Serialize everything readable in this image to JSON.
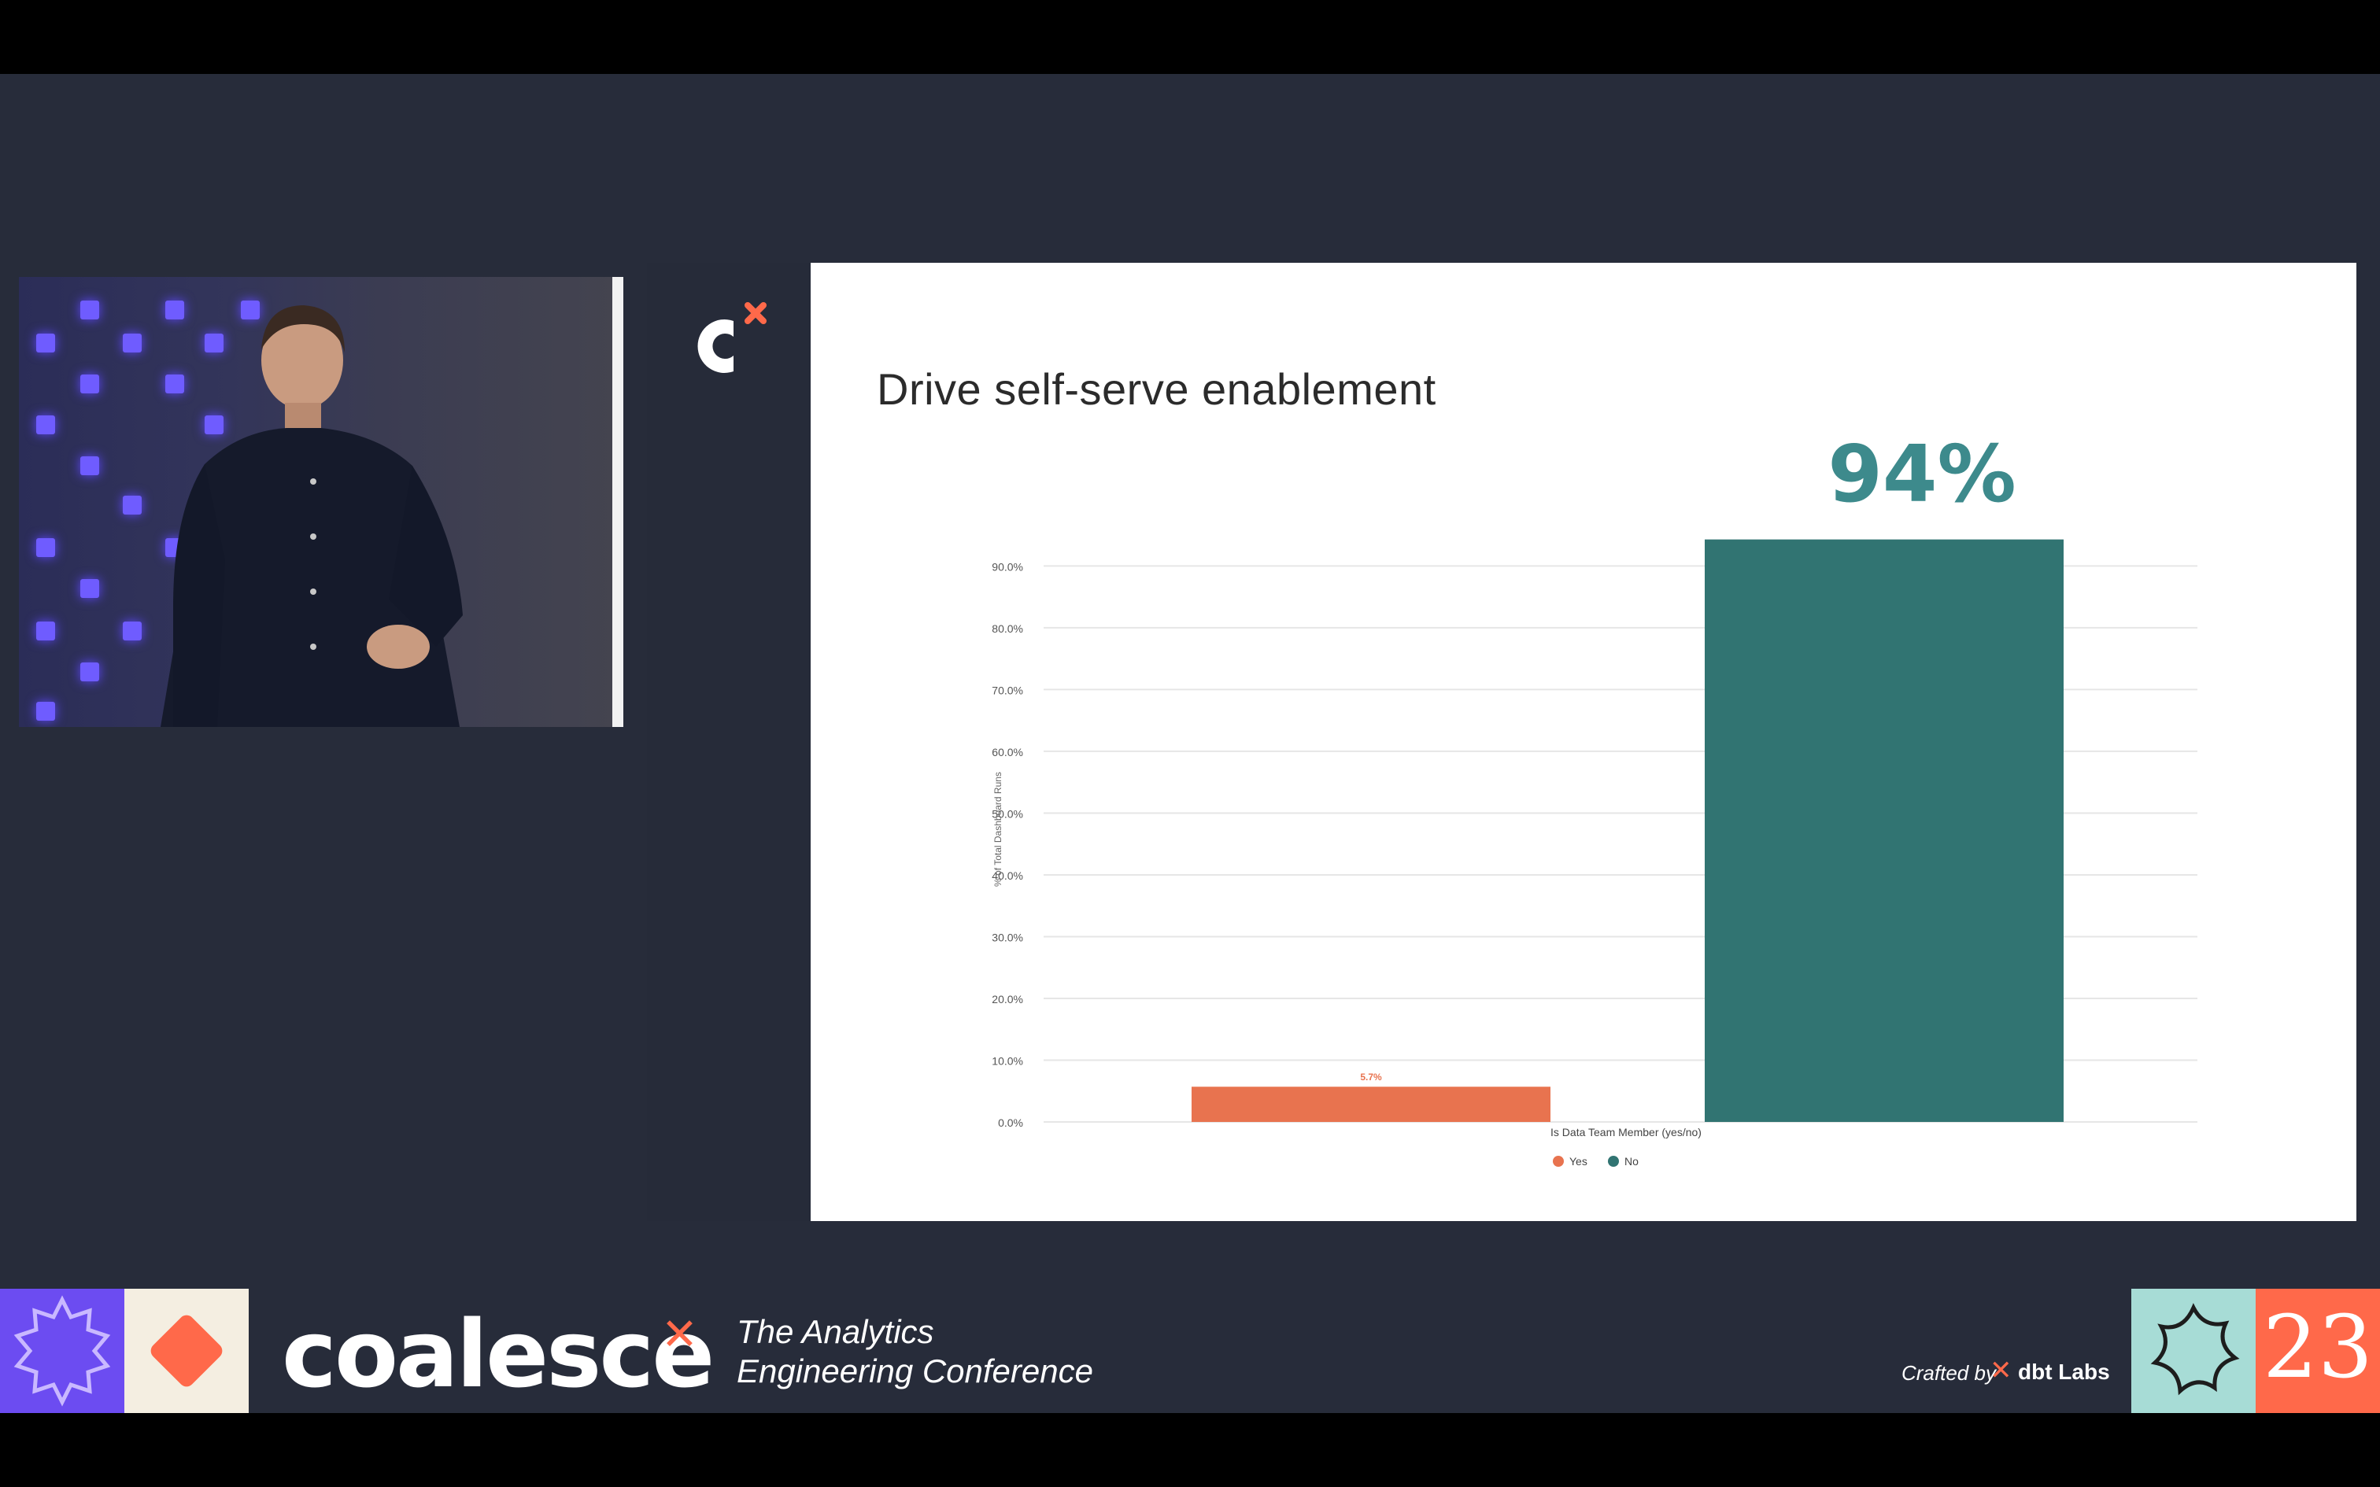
{
  "slide": {
    "title": "Drive self-serve enablement",
    "callout": "94%"
  },
  "chart_data": {
    "type": "bar",
    "title": "Drive self-serve enablement",
    "xlabel": "Is Data Team Member (yes/no)",
    "ylabel": "% of Total Dashboard Runs",
    "ylim": [
      0,
      94
    ],
    "yticks": [
      "0.0%",
      "10.0%",
      "20.0%",
      "30.0%",
      "40.0%",
      "50.0%",
      "60.0%",
      "70.0%",
      "80.0%",
      "90.0%"
    ],
    "grid": true,
    "legend_position": "bottom",
    "categories": [
      "Yes",
      "No"
    ],
    "values": [
      5.7,
      94.3
    ],
    "data_labels": [
      "5.7%",
      "94%"
    ],
    "colors": [
      "#e8734f",
      "#317472"
    ],
    "legend": [
      "Yes",
      "No"
    ]
  },
  "footer": {
    "brand": "coalesce",
    "tagline_line1": "The Analytics",
    "tagline_line2": "Engineering Conference",
    "crafted_by": "Crafted by",
    "company": "dbt Labs",
    "year": "23"
  },
  "colors": {
    "stage": "#272c3a",
    "brand_orange": "#ff694a",
    "teal": "#317472",
    "callout": "#3d8a8c"
  }
}
